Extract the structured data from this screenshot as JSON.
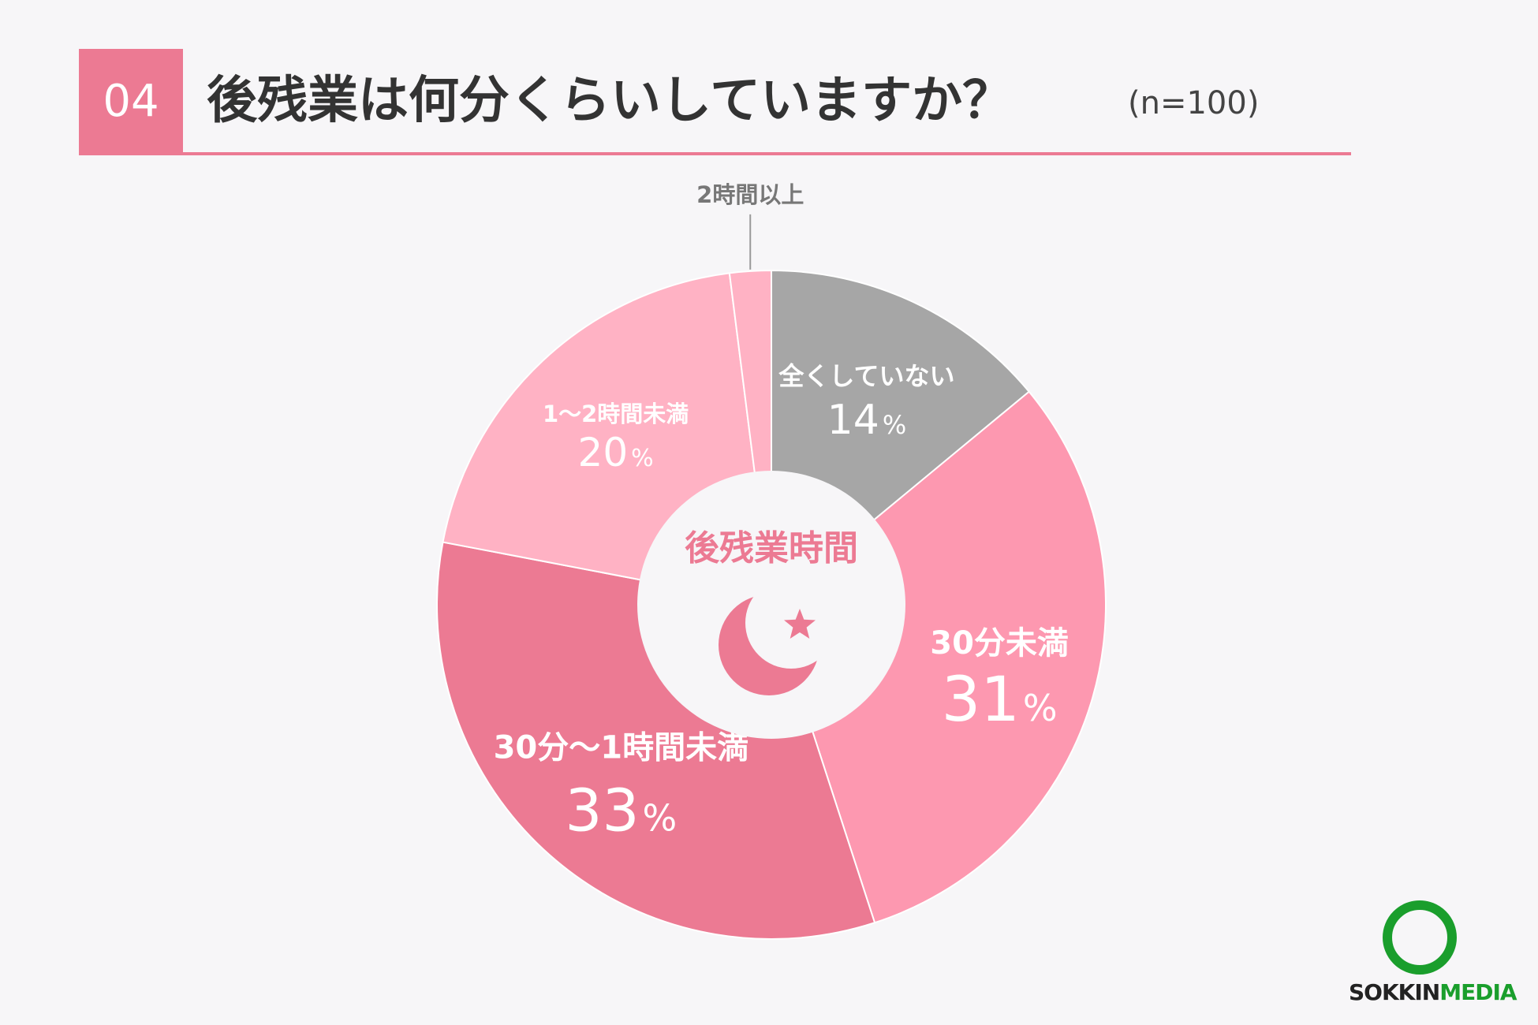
{
  "header": {
    "number": "04",
    "title": "後残業は何分くらいしていますか？",
    "sample": "(n=100)"
  },
  "colors": {
    "accent": "#ec7a93",
    "outline": "#ffffff"
  },
  "chart_data": {
    "type": "pie",
    "center_label": "後残業時間",
    "center_icon": "moon-star-icon",
    "unit": "%",
    "slices": [
      {
        "label": "全くしていない",
        "value": 14,
        "color": "#a6a6a6"
      },
      {
        "label": "30分未満",
        "value": 31,
        "color": "#fd98b0"
      },
      {
        "label": "30分〜1時間未満",
        "value": 33,
        "color": "#ec7a93"
      },
      {
        "label": "1〜2時間未満",
        "value": 20,
        "color": "#ffb2c4"
      },
      {
        "label": "2時間以上",
        "value": 2,
        "color": "#ffb2c4"
      }
    ]
  },
  "logo": {
    "part1": "SOKKIN",
    "part2": "MEDIA"
  }
}
